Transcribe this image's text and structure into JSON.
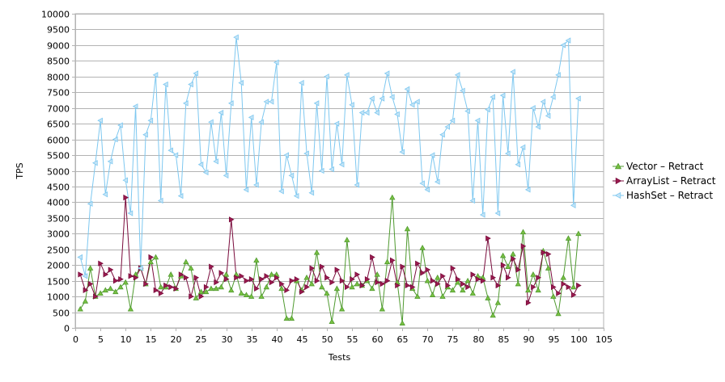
{
  "chart_data": {
    "type": "line",
    "title": "",
    "xlabel": "Tests",
    "ylabel": "TPS",
    "xlim": [
      0,
      105
    ],
    "ylim": [
      0,
      10000
    ],
    "x_ticks": [
      0,
      5,
      10,
      15,
      20,
      25,
      30,
      35,
      40,
      45,
      50,
      55,
      60,
      65,
      70,
      75,
      80,
      85,
      90,
      95,
      100,
      105
    ],
    "y_ticks": [
      0,
      500,
      1000,
      1500,
      2000,
      2500,
      3000,
      3500,
      4000,
      4500,
      5000,
      5500,
      6000,
      6500,
      7000,
      7500,
      8000,
      8500,
      9000,
      9500,
      10000
    ],
    "grid": "horizontal",
    "legend_position": "right",
    "x": [
      1,
      2,
      3,
      4,
      5,
      6,
      7,
      8,
      9,
      10,
      11,
      12,
      13,
      14,
      15,
      16,
      17,
      18,
      19,
      20,
      21,
      22,
      23,
      24,
      25,
      26,
      27,
      28,
      29,
      30,
      31,
      32,
      33,
      34,
      35,
      36,
      37,
      38,
      39,
      40,
      41,
      42,
      43,
      44,
      45,
      46,
      47,
      48,
      49,
      50,
      51,
      52,
      53,
      54,
      55,
      56,
      57,
      58,
      59,
      60,
      61,
      62,
      63,
      64,
      65,
      66,
      67,
      68,
      69,
      70,
      71,
      72,
      73,
      74,
      75,
      76,
      77,
      78,
      79,
      80,
      81,
      82,
      83,
      84,
      85,
      86,
      87,
      88,
      89,
      90,
      91,
      92,
      93,
      94,
      95,
      96,
      97,
      98,
      99,
      100
    ],
    "series": [
      {
        "name": "Vector – Retract",
        "color": "#4f9a2f",
        "marker": "triangle-up",
        "marker_fill": "#7ac143",
        "values": [
          600,
          850,
          1900,
          1000,
          1100,
          1200,
          1250,
          1150,
          1300,
          1450,
          600,
          1700,
          1900,
          1400,
          2100,
          2250,
          1300,
          1300,
          1700,
          1250,
          1650,
          2100,
          1900,
          950,
          1150,
          1150,
          1250,
          1250,
          1300,
          1700,
          1200,
          1700,
          1100,
          1050,
          1000,
          2150,
          1000,
          1300,
          1700,
          1700,
          1250,
          300,
          300,
          1500,
          1200,
          1600,
          1400,
          2400,
          1300,
          1100,
          200,
          1250,
          600,
          2800,
          1300,
          1400,
          1350,
          1500,
          1250,
          1700,
          600,
          2100,
          4150,
          1450,
          150,
          3150,
          1250,
          1000,
          2550,
          1500,
          1050,
          1600,
          1000,
          1300,
          1200,
          1450,
          1200,
          1500,
          1100,
          1650,
          1600,
          950,
          400,
          800,
          2300,
          1950,
          2350,
          1400,
          3050,
          1200,
          1700,
          1200,
          2450,
          1900,
          1000,
          450,
          1600,
          2850,
          1300,
          3000
        ]
      },
      {
        "name": "ArrayList – Retract",
        "color": "#7a0b3c",
        "marker": "triangle-right",
        "marker_fill": "#9b1b4f",
        "values": [
          1700,
          1200,
          1400,
          1000,
          2050,
          1700,
          1850,
          1500,
          1550,
          4150,
          1650,
          1600,
          1900,
          1400,
          2250,
          1200,
          1100,
          1350,
          1300,
          1250,
          1700,
          1600,
          1000,
          1600,
          1000,
          1300,
          1950,
          1450,
          1750,
          1550,
          3450,
          1600,
          1650,
          1500,
          1550,
          1250,
          1550,
          1650,
          1450,
          1600,
          1400,
          1200,
          1500,
          1550,
          1150,
          1300,
          1900,
          1500,
          1950,
          1600,
          1450,
          1850,
          1500,
          1300,
          1550,
          1700,
          1350,
          1550,
          2250,
          1450,
          1400,
          1500,
          2150,
          1350,
          1950,
          1350,
          1300,
          2050,
          1750,
          1850,
          1500,
          1400,
          1650,
          1350,
          1900,
          1550,
          1400,
          1300,
          1700,
          1550,
          1500,
          2850,
          1600,
          1350,
          2000,
          1600,
          2200,
          1850,
          2600,
          800,
          1300,
          1600,
          2400,
          2350,
          1300,
          1100,
          1400,
          1300,
          1050,
          1350
        ]
      },
      {
        "name": "HashSet – Retract",
        "color": "#7ec8f0",
        "marker": "triangle-left",
        "marker_fill": "#c6e5f7",
        "values": [
          2250,
          1650,
          3950,
          5250,
          6600,
          4250,
          5300,
          6000,
          6450,
          4700,
          3650,
          7050,
          1900,
          6150,
          6600,
          8050,
          4050,
          7750,
          5650,
          5500,
          4200,
          7150,
          7750,
          8100,
          5200,
          4950,
          6550,
          5300,
          6850,
          4850,
          7150,
          9250,
          7800,
          4400,
          6700,
          4550,
          6550,
          7200,
          7200,
          8450,
          4350,
          5500,
          4850,
          4200,
          7800,
          5550,
          4300,
          7150,
          5000,
          8000,
          5050,
          6500,
          5200,
          8050,
          7100,
          4550,
          6850,
          6850,
          7300,
          6850,
          7300,
          8100,
          7350,
          6800,
          5600,
          7600,
          7100,
          7200,
          4600,
          4400,
          5500,
          4650,
          6150,
          6400,
          6600,
          8050,
          7550,
          6900,
          4050,
          6600,
          3600,
          6950,
          7350,
          3650,
          7400,
          5550,
          8150,
          5200,
          5750,
          4400,
          7000,
          6400,
          7200,
          6750,
          7350,
          8050,
          9000,
          9150,
          3900,
          7300
        ]
      }
    ]
  }
}
